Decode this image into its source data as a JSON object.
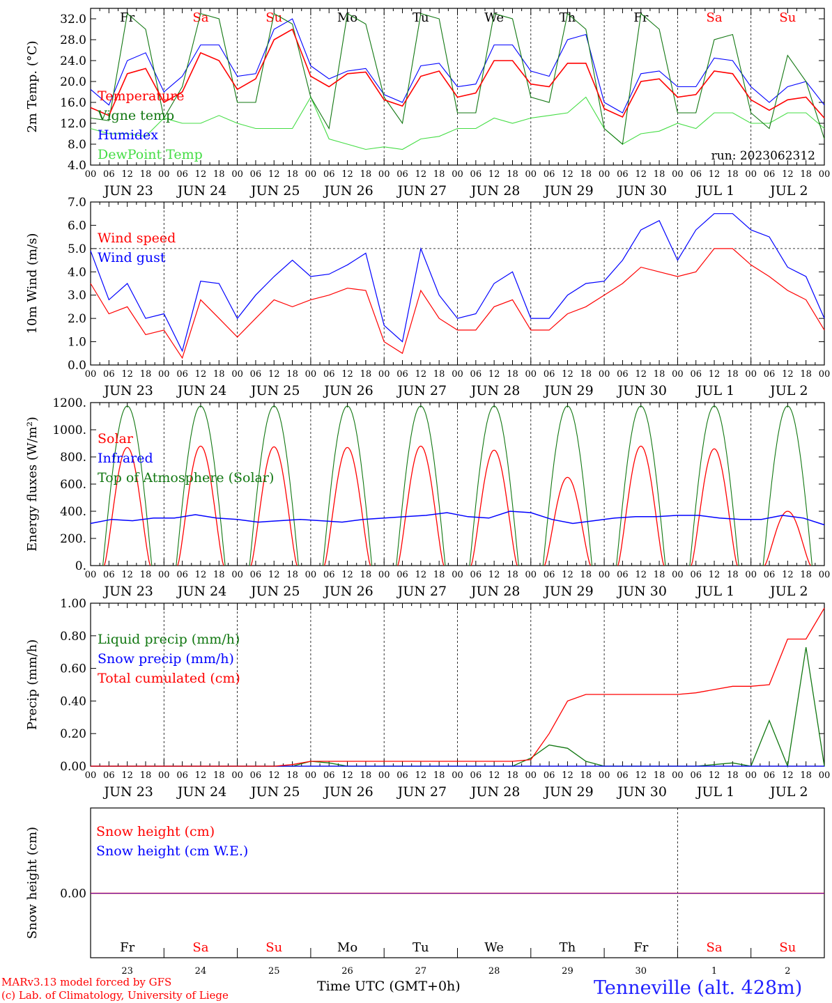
{
  "colors": {
    "red": "#ff0000",
    "dark_green": "#117711",
    "blue": "#0000ff",
    "light_green": "#44dd44",
    "purple": "#8844aa"
  },
  "footer": {
    "credit1": "MARv3.13 model forced by GFS",
    "credit2": "(c) Lab. of Climatology, University of Liege",
    "xtitle": "Time UTC (GMT+0h)",
    "station": "Tenneville (alt. 428m)"
  },
  "chart_data": [
    {
      "type": "line",
      "ylabel": "2m Temp. (°C)",
      "ylim": [
        4,
        34
      ],
      "yticks": [
        "4.0",
        "8.0",
        "12.0",
        "16.0",
        "20.0",
        "24.0",
        "28.0",
        "32.0"
      ],
      "annotation": "run: 2023062312",
      "day_names": [
        [
          "Fr",
          "#000000"
        ],
        [
          "Sa",
          "#ff0000"
        ],
        [
          "Su",
          "#ff0000"
        ],
        [
          "Mo",
          "#000000"
        ],
        [
          "Tu",
          "#000000"
        ],
        [
          "We",
          "#000000"
        ],
        [
          "Th",
          "#000000"
        ],
        [
          "Fr",
          "#000000"
        ],
        [
          "Sa",
          "#ff0000"
        ],
        [
          "Su",
          "#ff0000"
        ]
      ],
      "date_labels": [
        "JUN 23",
        "JUN 24",
        "JUN 25",
        "JUN 26",
        "JUN 27",
        "JUN 28",
        "JUN 29",
        "JUN 30",
        "JUL  1",
        "JUL  2"
      ],
      "hour_labels": [
        "00",
        "06",
        "12",
        "18"
      ],
      "series": [
        {
          "name": "Temperature",
          "color": "#ff0000",
          "values": [
            15,
            13.5,
            21.5,
            22.5,
            16,
            18,
            25.5,
            24,
            18.5,
            20.5,
            28,
            30,
            21,
            19,
            21.5,
            21.8,
            16.5,
            15.3,
            21,
            22,
            17,
            17.8,
            24,
            24,
            19.5,
            19,
            23.5,
            23.5,
            14.8,
            13.2,
            20,
            20.5,
            17,
            17.5,
            22,
            21.5,
            16.5,
            14.5,
            16.5,
            17,
            13
          ]
        },
        {
          "name": "Vigne temp",
          "color": "#117711",
          "values": [
            13,
            12.5,
            33,
            30,
            13,
            19,
            33,
            32,
            16,
            16,
            33,
            31,
            17,
            11,
            33,
            31,
            17,
            12,
            33,
            32,
            14,
            14,
            33,
            32,
            17,
            16,
            33,
            30,
            11,
            8,
            33,
            30,
            14,
            14,
            28,
            29,
            14,
            11,
            25,
            20,
            9
          ]
        },
        {
          "name": "Humidex",
          "color": "#0000ff",
          "values": [
            18.5,
            15.5,
            24,
            25.5,
            18,
            21,
            27,
            27,
            21,
            21.5,
            30,
            32,
            23,
            20.5,
            22,
            22.5,
            17.5,
            16,
            23,
            23.5,
            19,
            19.5,
            27,
            27,
            22,
            21,
            28,
            29,
            16,
            14,
            21.5,
            22,
            19,
            19,
            24.5,
            24,
            19,
            16,
            19,
            20,
            15.5
          ]
        },
        {
          "name": "DewPoint Temp",
          "color": "#44dd44",
          "values": [
            11,
            10,
            10,
            9.5,
            13,
            12,
            12,
            13.5,
            12,
            11,
            11,
            11,
            17,
            9,
            8,
            7,
            7.5,
            7,
            9,
            9.5,
            11,
            11,
            13,
            12,
            13,
            13.5,
            14,
            17,
            11,
            8,
            10,
            10.5,
            12,
            11,
            14,
            14,
            12,
            12,
            14,
            14,
            11
          ]
        }
      ]
    },
    {
      "type": "line",
      "ylabel": "10m Wind (m/s)",
      "ylim": [
        0,
        7
      ],
      "yticks": [
        "0.0",
        "1.0",
        "2.0",
        "3.0",
        "4.0",
        "5.0",
        "6.0",
        "7.0"
      ],
      "reference_line": 5.0,
      "date_labels": [
        "JUN 23",
        "JUN 24",
        "JUN 25",
        "JUN 26",
        "JUN 27",
        "JUN 28",
        "JUN 29",
        "JUN 30",
        "JUL  1",
        "JUL  2"
      ],
      "hour_labels": [
        "00",
        "06",
        "12",
        "18"
      ],
      "series": [
        {
          "name": "Wind speed",
          "color": "#ff0000",
          "values": [
            3.5,
            2.2,
            2.5,
            1.3,
            1.5,
            0.3,
            2.8,
            2,
            1.2,
            2,
            2.8,
            2.5,
            2.8,
            3,
            3.3,
            3.2,
            1,
            0.5,
            3.2,
            2,
            1.5,
            1.5,
            2.5,
            2.8,
            1.5,
            1.5,
            2.2,
            2.5,
            3,
            3.5,
            4.2,
            4,
            3.8,
            4,
            5,
            5,
            4.3,
            3.8,
            3.2,
            2.8,
            1.5
          ]
        },
        {
          "name": "Wind gust",
          "color": "#0000ff",
          "values": [
            4.9,
            2.8,
            3.5,
            2,
            2.2,
            0.6,
            3.6,
            3.5,
            2,
            3,
            3.8,
            4.5,
            3.8,
            3.9,
            4.3,
            4.8,
            1.7,
            1,
            5,
            3,
            2,
            2.2,
            3.5,
            4,
            2,
            2,
            3,
            3.5,
            3.6,
            4.5,
            5.8,
            6.2,
            4.5,
            5.8,
            6.5,
            6.5,
            5.8,
            5.5,
            4.2,
            3.8,
            2
          ]
        }
      ]
    },
    {
      "type": "line",
      "ylabel": "Energy fluxes (W/m²)",
      "ylim": [
        0,
        1200
      ],
      "yticks": [
        "0.",
        "200.",
        "400.",
        "600.",
        "800.",
        "1000.",
        "1200."
      ],
      "date_labels": [
        "JUN 23",
        "JUN 24",
        "JUN 25",
        "JUN 26",
        "JUN 27",
        "JUN 28",
        "JUN 29",
        "JUN 30",
        "JUL  1",
        "JUL  2"
      ],
      "hour_labels": [
        "00",
        "06",
        "12",
        "18"
      ],
      "solar_peaks": [
        870,
        880,
        875,
        870,
        880,
        850,
        650,
        880,
        860,
        400
      ],
      "infrared_values": [
        310,
        340,
        330,
        350,
        350,
        375,
        350,
        340,
        320,
        330,
        340,
        330,
        320,
        340,
        350,
        360,
        370,
        390,
        360,
        350,
        400,
        390,
        340,
        310,
        330,
        350,
        360,
        360,
        370,
        370,
        350,
        340,
        340,
        370,
        350,
        300
      ],
      "series": [
        {
          "name": "Solar",
          "color": "#ff0000"
        },
        {
          "name": "Infrared",
          "color": "#0000ff"
        },
        {
          "name": "Top of Atmosphere (Solar)",
          "color": "#117711",
          "peak": 1175
        }
      ]
    },
    {
      "type": "line",
      "ylabel": "Precip (mm/h)",
      "ylim": [
        0,
        1
      ],
      "yticks": [
        "0.00",
        "0.20",
        "0.40",
        "0.60",
        "0.80",
        "1.00"
      ],
      "date_labels": [
        "JUN 23",
        "JUN 24",
        "JUN 25",
        "JUN 26",
        "JUN 27",
        "JUN 28",
        "JUN 29",
        "JUN 30",
        "JUL  1",
        "JUL  2"
      ],
      "hour_labels": [
        "00",
        "06",
        "12",
        "18"
      ],
      "series": [
        {
          "name": "Liquid precip (mm/h)",
          "color": "#117711",
          "values": [
            0,
            0,
            0,
            0,
            0,
            0,
            0,
            0,
            0,
            0,
            0,
            0,
            0.03,
            0.02,
            0,
            0,
            0,
            0,
            0,
            0,
            0,
            0,
            0,
            0,
            0.05,
            0.13,
            0.11,
            0.03,
            0,
            0,
            0,
            0,
            0,
            0,
            0.01,
            0.02,
            0,
            0.28,
            0,
            0.73,
            0
          ]
        },
        {
          "name": "Snow precip (mm/h)",
          "color": "#0000ff",
          "values": [
            0,
            0,
            0,
            0,
            0,
            0,
            0,
            0,
            0,
            0,
            0,
            0,
            0,
            0,
            0,
            0,
            0,
            0,
            0,
            0,
            0,
            0,
            0,
            0,
            0,
            0,
            0,
            0,
            0,
            0,
            0,
            0,
            0,
            0,
            0,
            0,
            0,
            0,
            0,
            0,
            0
          ]
        },
        {
          "name": "Total cumulated (cm)",
          "color": "#ff0000",
          "values": [
            0,
            0,
            0,
            0,
            0,
            0,
            0,
            0,
            0,
            0,
            0,
            0.01,
            0.03,
            0.03,
            0.03,
            0.03,
            0.03,
            0.03,
            0.03,
            0.03,
            0.03,
            0.03,
            0.03,
            0.03,
            0.04,
            0.2,
            0.4,
            0.44,
            0.44,
            0.44,
            0.44,
            0.44,
            0.44,
            0.45,
            0.47,
            0.49,
            0.49,
            0.5,
            0.78,
            0.78,
            0.97
          ]
        }
      ]
    },
    {
      "type": "line",
      "ylabel": "Snow height (cm)",
      "ylim": [
        -1,
        1
      ],
      "yticks": [
        "0.00"
      ],
      "day_names": [
        [
          "Fr",
          "#000000"
        ],
        [
          "Sa",
          "#ff0000"
        ],
        [
          "Su",
          "#ff0000"
        ],
        [
          "Mo",
          "#000000"
        ],
        [
          "Tu",
          "#000000"
        ],
        [
          "We",
          "#000000"
        ],
        [
          "Th",
          "#000000"
        ],
        [
          "Fr",
          "#000000"
        ],
        [
          "Sa",
          "#ff0000"
        ],
        [
          "Su",
          "#ff0000"
        ]
      ],
      "day_numbers": [
        "23",
        "24",
        "25",
        "26",
        "27",
        "28",
        "29",
        "30",
        "1",
        "2"
      ],
      "series": [
        {
          "name": "Snow height (cm)",
          "color": "#ff0000",
          "values": [
            0,
            0
          ]
        },
        {
          "name": "Snow height (cm W.E.)",
          "color": "#0000ff",
          "values": [
            0,
            0
          ]
        }
      ]
    }
  ]
}
